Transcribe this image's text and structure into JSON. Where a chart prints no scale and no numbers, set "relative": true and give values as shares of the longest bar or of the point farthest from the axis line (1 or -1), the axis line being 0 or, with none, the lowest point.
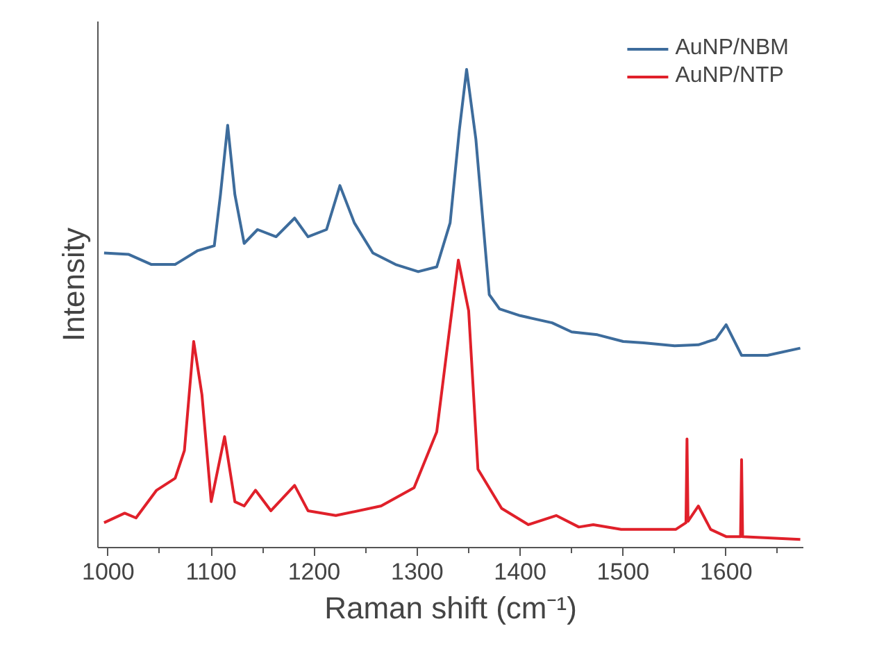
{
  "chart_data": {
    "type": "line",
    "xlabel": "Raman shift (cm⁻¹)",
    "ylabel": "Intensity",
    "relative": true,
    "xlim": [
      990,
      1675
    ],
    "xticks": [
      1000,
      1100,
      1200,
      1300,
      1400,
      1500,
      1600
    ],
    "legend": "top right",
    "grid": false,
    "series": [
      {
        "name": "AuNP/NBM",
        "color": "#3d6c9c",
        "x": [
          996,
          1020,
          1042,
          1065,
          1087,
          1103,
          1109,
          1116,
          1123,
          1132,
          1145,
          1163,
          1181,
          1194,
          1212,
          1225,
          1239,
          1257,
          1279,
          1301,
          1319,
          1332,
          1341,
          1348,
          1357,
          1370,
          1380,
          1400,
          1431,
          1450,
          1475,
          1500,
          1520,
          1550,
          1573,
          1590,
          1600,
          1615,
          1640,
          1672
        ],
        "values": [
          0.616,
          0.613,
          0.592,
          0.592,
          0.621,
          0.631,
          0.738,
          0.883,
          0.738,
          0.636,
          0.665,
          0.65,
          0.689,
          0.65,
          0.665,
          0.757,
          0.679,
          0.616,
          0.592,
          0.577,
          0.587,
          0.679,
          0.874,
          1.0,
          0.854,
          0.529,
          0.499,
          0.485,
          0.47,
          0.451,
          0.445,
          0.431,
          0.428,
          0.422,
          0.424,
          0.436,
          0.466,
          0.402,
          0.402,
          0.417
        ]
      },
      {
        "name": "AuNP/NTP",
        "color": "#e0202a",
        "x": [
          996,
          1016,
          1027,
          1047,
          1065,
          1074,
          1083,
          1091,
          1100,
          1113,
          1123,
          1132,
          1143,
          1158,
          1181,
          1194,
          1221,
          1265,
          1297,
          1319,
          1332,
          1340,
          1350,
          1359,
          1382,
          1408,
          1435,
          1457,
          1471,
          1498,
          1551,
          1561,
          1562,
          1563,
          1573,
          1585,
          1600,
          1614,
          1615,
          1616,
          1672
        ],
        "values": [
          0.052,
          0.072,
          0.062,
          0.12,
          0.145,
          0.203,
          0.431,
          0.32,
          0.096,
          0.232,
          0.096,
          0.087,
          0.12,
          0.077,
          0.13,
          0.077,
          0.067,
          0.087,
          0.125,
          0.242,
          0.466,
          0.601,
          0.495,
          0.164,
          0.082,
          0.048,
          0.067,
          0.043,
          0.048,
          0.038,
          0.038,
          0.052,
          0.227,
          0.055,
          0.087,
          0.038,
          0.023,
          0.023,
          0.184,
          0.023,
          0.017
        ]
      }
    ]
  }
}
